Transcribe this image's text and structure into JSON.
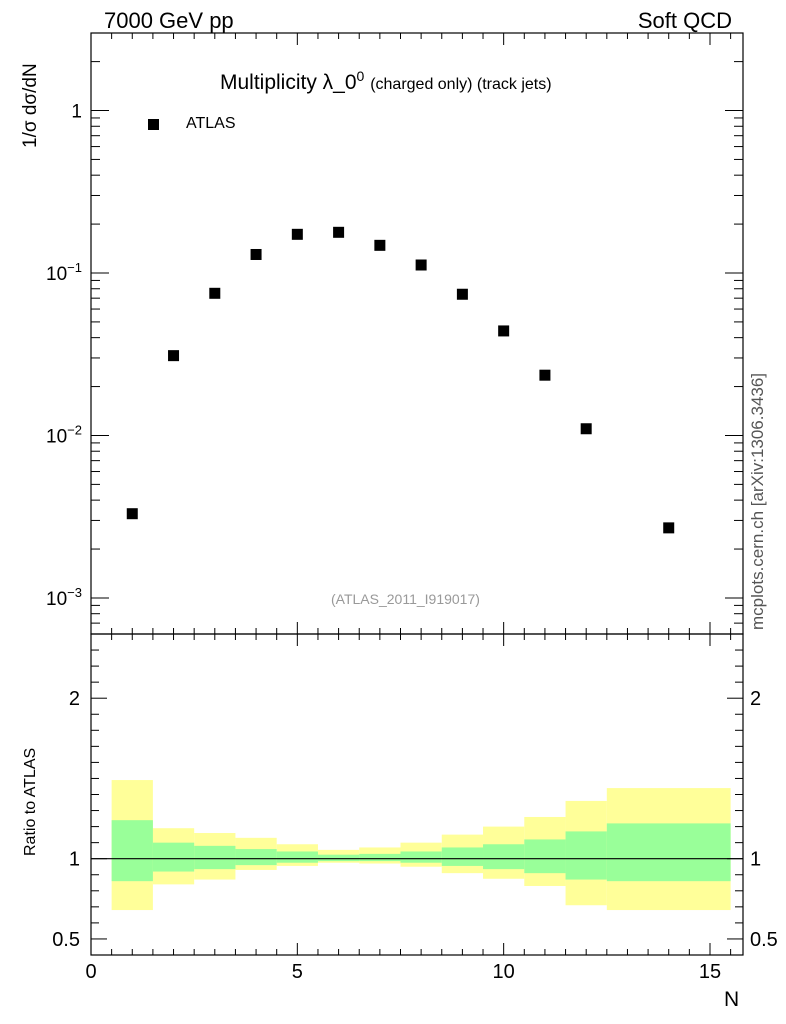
{
  "header": {
    "left": "7000 GeV pp",
    "right": "Soft QCD"
  },
  "side_label": "mcplots.cern.ch [arXiv:1306.3436]",
  "chart_data": [
    {
      "type": "scatter",
      "title_main": "Multiplicity λ_0",
      "title_sup": "0",
      "title_sub": "(charged only) (track jets)",
      "ylabel": "1/σ dσ/dN",
      "xlabel": "",
      "yscale": "log",
      "ylim": [
        0.0006,
        3
      ],
      "xlim": [
        0,
        15.8
      ],
      "reference": "(ATLAS_2011_I919017)",
      "legend": {
        "position": "top-left",
        "entries": [
          "ATLAS"
        ]
      },
      "series": [
        {
          "name": "ATLAS",
          "marker": "square",
          "color": "#000000",
          "x": [
            1,
            2,
            3,
            4,
            5,
            6,
            7,
            8,
            9,
            10,
            11,
            12,
            14
          ],
          "y": [
            0.0033,
            0.031,
            0.075,
            0.13,
            0.173,
            0.178,
            0.148,
            0.112,
            0.074,
            0.044,
            0.0235,
            0.011,
            0.0027
          ]
        }
      ],
      "yticks": [
        {
          "value": 0.001,
          "base": "10",
          "exp": "−3"
        },
        {
          "value": 0.01,
          "base": "10",
          "exp": "−2"
        },
        {
          "value": 0.1,
          "base": "10",
          "exp": "−1"
        },
        {
          "value": 1,
          "base": "1",
          "exp": ""
        }
      ]
    },
    {
      "type": "area",
      "ylabel": "Ratio to ATLAS",
      "xlabel": "N",
      "ylim": [
        0.4,
        2.4
      ],
      "xlim": [
        0,
        15.8
      ],
      "xticks": [
        0,
        5,
        10,
        15
      ],
      "yticks": [
        0.5,
        1,
        2
      ],
      "reference_line": 1,
      "bands": [
        {
          "name": "outer",
          "color": "#ffff99",
          "bins": [
            {
              "x0": 0.5,
              "x1": 1.5,
              "lo": 0.68,
              "hi": 1.49
            },
            {
              "x0": 1.5,
              "x1": 2.5,
              "lo": 0.84,
              "hi": 1.19
            },
            {
              "x0": 2.5,
              "x1": 3.5,
              "lo": 0.87,
              "hi": 1.16
            },
            {
              "x0": 3.5,
              "x1": 4.5,
              "lo": 0.93,
              "hi": 1.13
            },
            {
              "x0": 4.5,
              "x1": 5.5,
              "lo": 0.955,
              "hi": 1.09
            },
            {
              "x0": 5.5,
              "x1": 6.5,
              "lo": 0.975,
              "hi": 1.055
            },
            {
              "x0": 6.5,
              "x1": 7.5,
              "lo": 0.97,
              "hi": 1.07
            },
            {
              "x0": 7.5,
              "x1": 8.5,
              "lo": 0.95,
              "hi": 1.1
            },
            {
              "x0": 8.5,
              "x1": 9.5,
              "lo": 0.91,
              "hi": 1.15
            },
            {
              "x0": 9.5,
              "x1": 10.5,
              "lo": 0.875,
              "hi": 1.2
            },
            {
              "x0": 10.5,
              "x1": 11.5,
              "lo": 0.83,
              "hi": 1.26
            },
            {
              "x0": 11.5,
              "x1": 12.5,
              "lo": 0.71,
              "hi": 1.36
            },
            {
              "x0": 12.5,
              "x1": 15.5,
              "lo": 0.68,
              "hi": 1.44
            }
          ]
        },
        {
          "name": "inner",
          "color": "#99ff99",
          "bins": [
            {
              "x0": 0.5,
              "x1": 1.5,
              "lo": 0.86,
              "hi": 1.24
            },
            {
              "x0": 1.5,
              "x1": 2.5,
              "lo": 0.92,
              "hi": 1.1
            },
            {
              "x0": 2.5,
              "x1": 3.5,
              "lo": 0.935,
              "hi": 1.08
            },
            {
              "x0": 3.5,
              "x1": 4.5,
              "lo": 0.96,
              "hi": 1.06
            },
            {
              "x0": 4.5,
              "x1": 5.5,
              "lo": 0.975,
              "hi": 1.045
            },
            {
              "x0": 5.5,
              "x1": 6.5,
              "lo": 0.985,
              "hi": 1.025
            },
            {
              "x0": 6.5,
              "x1": 7.5,
              "lo": 0.985,
              "hi": 1.03
            },
            {
              "x0": 7.5,
              "x1": 8.5,
              "lo": 0.975,
              "hi": 1.045
            },
            {
              "x0": 8.5,
              "x1": 9.5,
              "lo": 0.955,
              "hi": 1.07
            },
            {
              "x0": 9.5,
              "x1": 10.5,
              "lo": 0.935,
              "hi": 1.09
            },
            {
              "x0": 10.5,
              "x1": 11.5,
              "lo": 0.91,
              "hi": 1.12
            },
            {
              "x0": 11.5,
              "x1": 12.5,
              "lo": 0.87,
              "hi": 1.17
            },
            {
              "x0": 12.5,
              "x1": 15.5,
              "lo": 0.86,
              "hi": 1.22
            }
          ]
        }
      ]
    }
  ]
}
